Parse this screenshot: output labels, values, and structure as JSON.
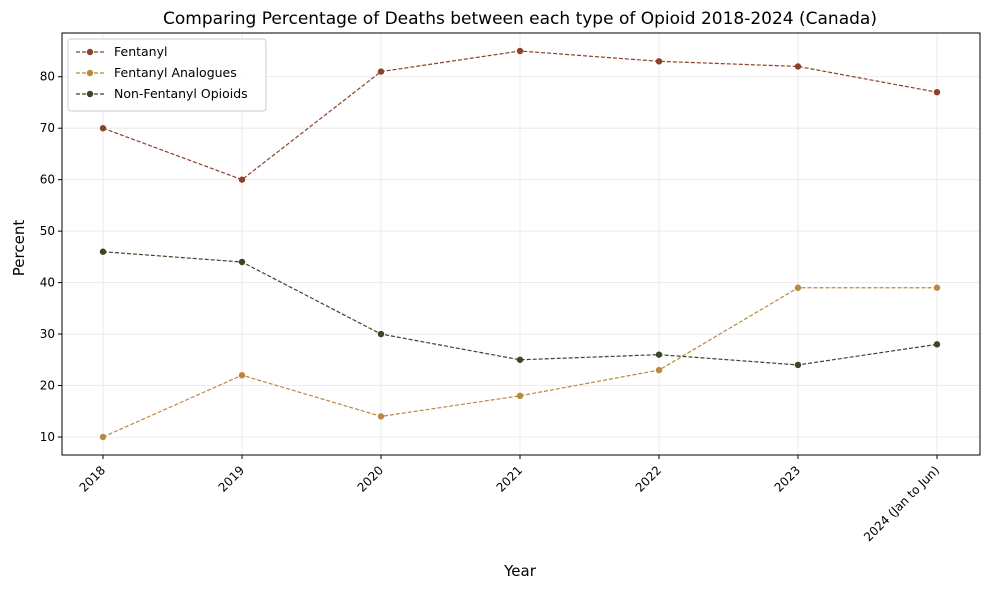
{
  "chart_data": {
    "type": "line",
    "title": "Comparing Percentage of Deaths between each type of Opioid 2018-2024 (Canada)",
    "xlabel": "Year",
    "ylabel": "Percent",
    "categories": [
      "2018",
      "2019",
      "2020",
      "2021",
      "2022",
      "2023",
      "2024 (Jan to Jun)"
    ],
    "ylim": [
      6.5,
      88.5
    ],
    "yticks": [
      10,
      20,
      30,
      40,
      50,
      60,
      70,
      80
    ],
    "grid": true,
    "legend_position": "top-left",
    "series": [
      {
        "name": "Fentanyl",
        "values": [
          70,
          60,
          81,
          85,
          83,
          82,
          77
        ],
        "color": "#8b412a"
      },
      {
        "name": "Fentanyl Analogues",
        "values": [
          10,
          22,
          14,
          18,
          23,
          39,
          39
        ],
        "color": "#b9893c"
      },
      {
        "name": "Non-Fentanyl Opioids",
        "values": [
          46,
          44,
          30,
          25,
          26,
          24,
          28
        ],
        "color": "#3e4429"
      }
    ]
  }
}
